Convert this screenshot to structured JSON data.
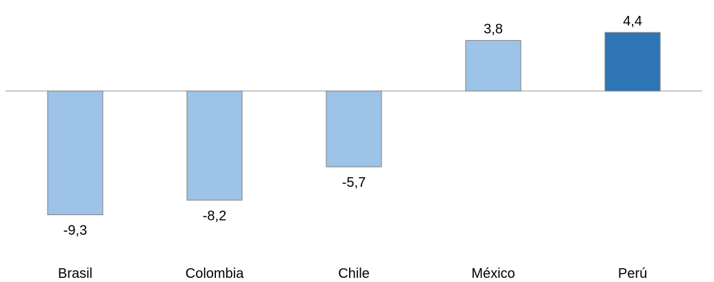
{
  "chart_data": {
    "type": "bar",
    "categories": [
      "Brasil",
      "Colombia",
      "Chile",
      "México",
      "Perú"
    ],
    "values": [
      -9.3,
      -8.2,
      -5.7,
      3.8,
      4.4
    ],
    "data_labels": [
      "-9,3",
      "-8,2",
      "-5,7",
      "3,8",
      "4,4"
    ],
    "highlight_category": "Perú",
    "colors": {
      "default_bar": "#9dc3e6",
      "highlight_bar": "#2e75b6",
      "zero_line": "#a6a6a6"
    },
    "ylim": [
      -10.5,
      6.5
    ],
    "grid": false,
    "legend": "none"
  }
}
